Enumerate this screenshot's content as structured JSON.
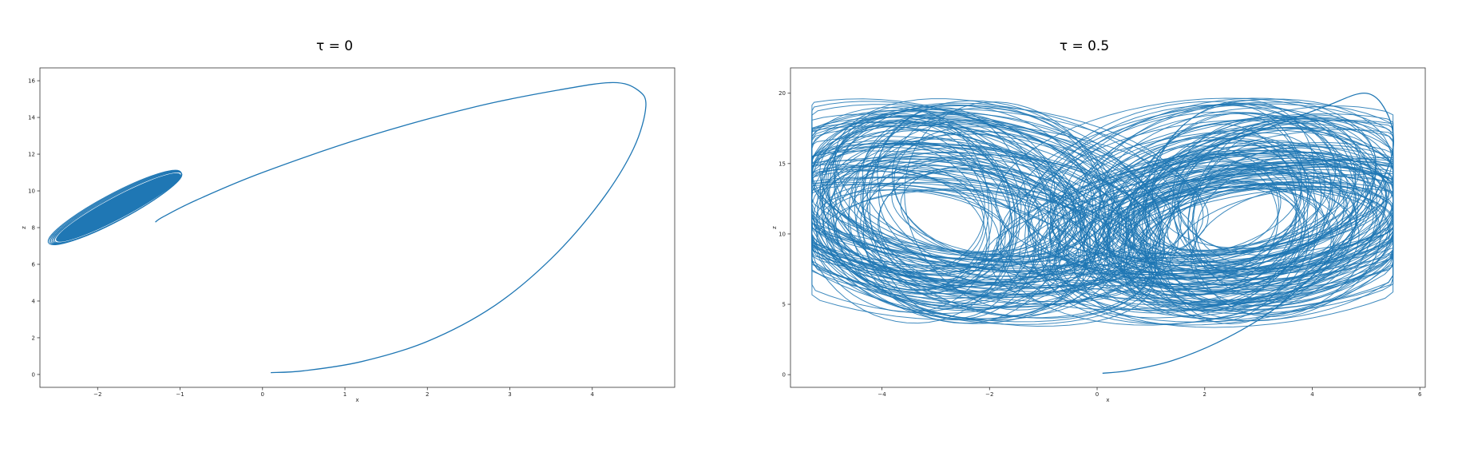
{
  "colors": {
    "series": "#1f77b4",
    "axis": "#333333",
    "background": "#ffffff"
  },
  "chart_data": [
    {
      "type": "line",
      "title": "τ = 0",
      "xlabel": "x",
      "ylabel": "z",
      "xlim": [
        -2.7,
        5.0
      ],
      "ylim": [
        -0.7,
        16.7
      ],
      "xticks": [
        -2,
        -1,
        0,
        1,
        2,
        3,
        4
      ],
      "yticks": [
        0,
        2,
        4,
        6,
        8,
        10,
        12,
        14,
        16
      ],
      "grid": false,
      "legend": "none",
      "series": [
        {
          "kind": "trajectory",
          "x": [
            0.1,
            0.5,
            1.2,
            2.0,
            2.8,
            3.5,
            4.1,
            4.5,
            4.65,
            4.55,
            4.25,
            3.6,
            2.6,
            1.3,
            0.0,
            -0.8,
            -1.2,
            -1.3
          ],
          "y": [
            0.1,
            0.2,
            0.7,
            1.8,
            3.7,
            6.3,
            9.4,
            12.3,
            14.6,
            15.5,
            15.9,
            15.5,
            14.6,
            13.0,
            11.0,
            9.5,
            8.6,
            8.3
          ]
        },
        {
          "kind": "attractor_ellipse",
          "cx": -1.75,
          "cy": 9.1,
          "rx": 0.55,
          "ry": 0.95,
          "angle_deg": -35
        }
      ]
    },
    {
      "type": "line",
      "title": "τ = 0.5",
      "xlabel": "x",
      "ylabel": "z",
      "xlim": [
        -5.7,
        6.1
      ],
      "ylim": [
        -0.9,
        21.8
      ],
      "xticks": [
        -4,
        -2,
        0,
        2,
        4,
        6
      ],
      "yticks": [
        0,
        5,
        10,
        15,
        20
      ],
      "grid": false,
      "legend": "none",
      "series": [
        {
          "kind": "trajectory",
          "x": [
            0.1,
            0.6,
            1.4,
            2.3,
            3.2,
            4.0,
            4.7,
            5.2,
            5.5,
            5.4,
            5.0,
            4.2,
            3.0,
            1.6,
            0.4
          ],
          "y": [
            0.1,
            0.3,
            1.0,
            2.4,
            4.4,
            7.0,
            10.0,
            13.0,
            16.0,
            18.5,
            20.0,
            19.0,
            17.3,
            15.6,
            14.2
          ]
        },
        {
          "kind": "chaotic_band",
          "x_range": [
            -5.2,
            5.3
          ],
          "y_range": [
            3.4,
            20.1
          ]
        }
      ]
    }
  ]
}
